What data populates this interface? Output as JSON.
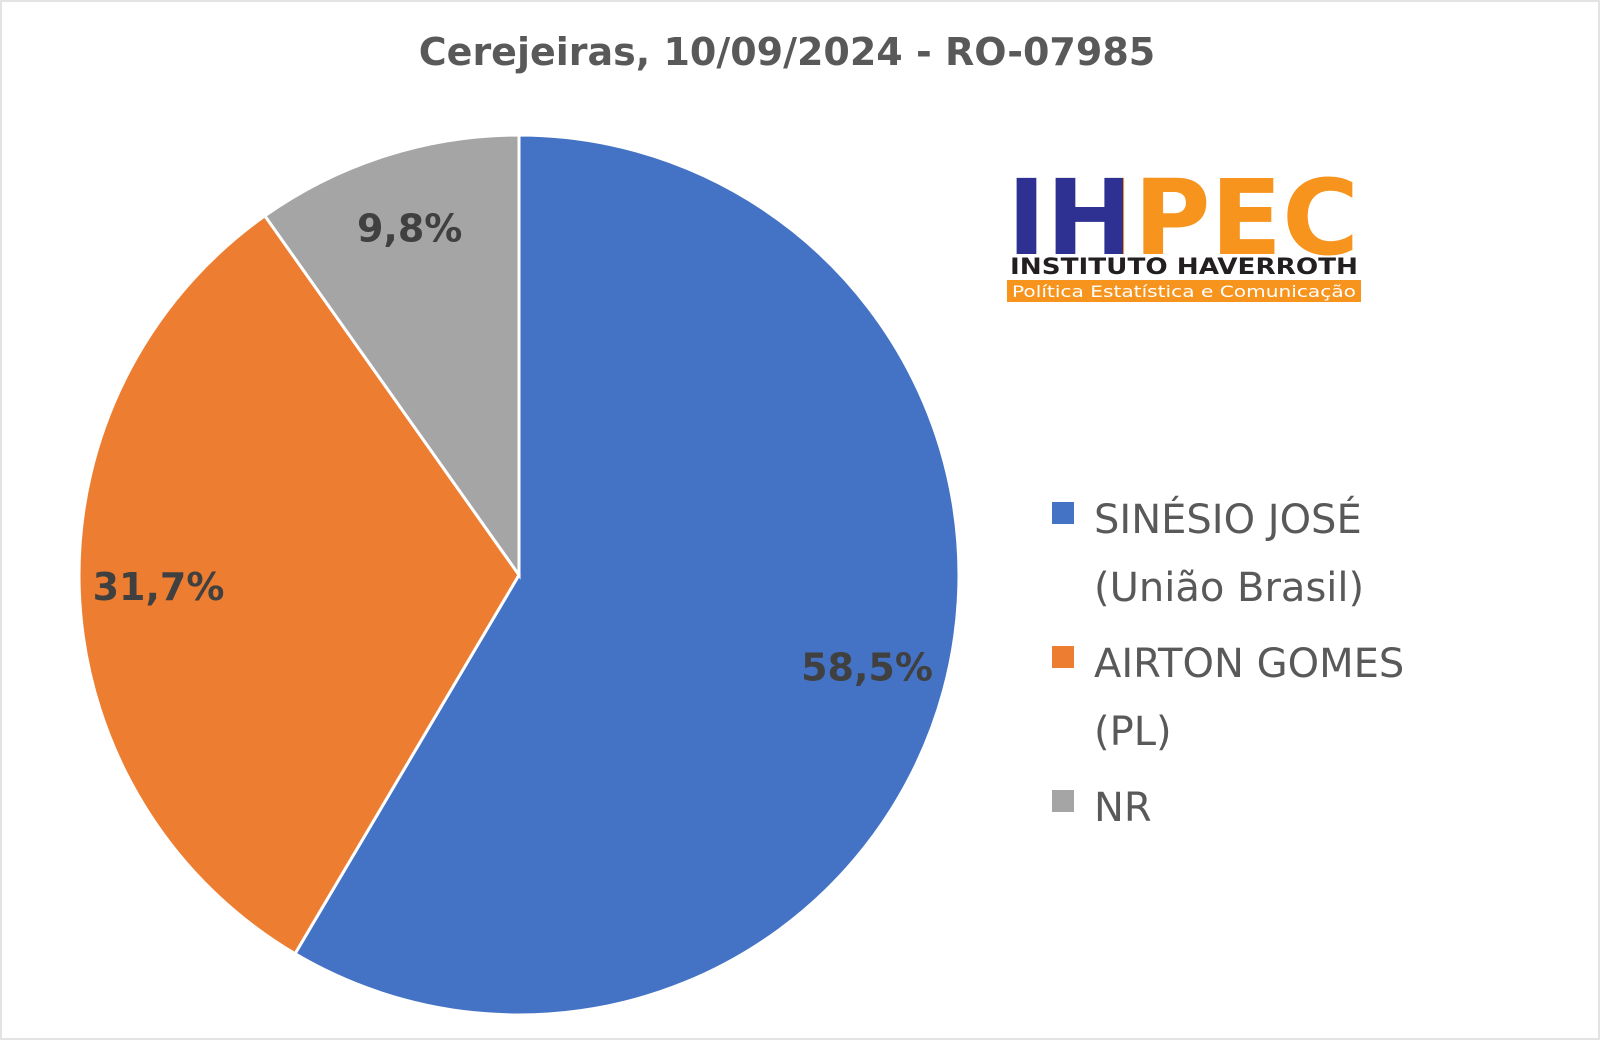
{
  "chart_data": {
    "type": "pie",
    "title": "Cerejeiras, 10/09/2024 - RO-07985",
    "categories": [
      "SINÉSIO JOSÉ (União Brasil)",
      "AIRTON GOMES (PL)",
      "NR"
    ],
    "values": [
      58.5,
      31.7,
      9.8
    ],
    "value_labels": [
      "58,5%",
      "31,7%",
      "9,8%"
    ],
    "colors": [
      "#4472c4",
      "#ed7d31",
      "#a5a5a5"
    ],
    "legend": "right"
  },
  "logo": {
    "name": "IHPEC",
    "line1": "INSTITUTO HAVERROTH",
    "line2": "Política Estatística e Comunicação"
  }
}
